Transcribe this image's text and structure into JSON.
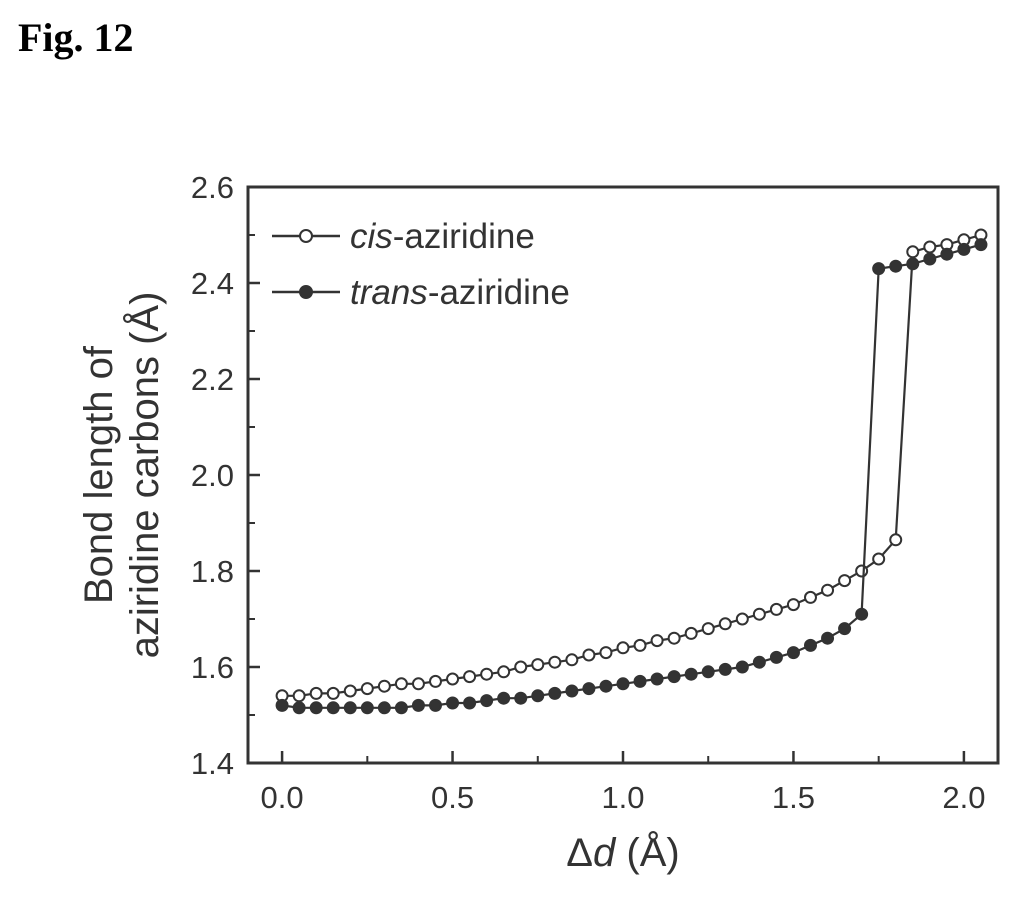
{
  "figure": {
    "label": "Fig. 12"
  },
  "chart_data": {
    "type": "line",
    "title": "",
    "xlabel": {
      "symbol": "Δ",
      "var": "d",
      "unit": " (Å)"
    },
    "ylabel": {
      "line1": "Bond length of",
      "line2": "aziridine carbons (Å)"
    },
    "xlim": [
      -0.1,
      2.1
    ],
    "ylim": [
      1.4,
      2.6
    ],
    "xticks": [
      0.0,
      0.5,
      1.0,
      1.5,
      2.0
    ],
    "xtick_labels": [
      "0.0",
      "0.5",
      "1.0",
      "1.5",
      "2.0"
    ],
    "yticks": [
      1.4,
      1.6,
      1.8,
      2.0,
      2.2,
      2.4,
      2.6
    ],
    "ytick_labels": [
      "1.4",
      "1.6",
      "1.8",
      "2.0",
      "2.2",
      "2.4",
      "2.6"
    ],
    "grid": false,
    "legend_position": "top-left",
    "series": [
      {
        "name_italic": "cis",
        "name_rest": "-aziridine",
        "marker": "open-circle",
        "color": "#333333",
        "x": [
          0.0,
          0.05,
          0.1,
          0.15,
          0.2,
          0.25,
          0.3,
          0.35,
          0.4,
          0.45,
          0.5,
          0.55,
          0.6,
          0.65,
          0.7,
          0.75,
          0.8,
          0.85,
          0.9,
          0.95,
          1.0,
          1.05,
          1.1,
          1.15,
          1.2,
          1.25,
          1.3,
          1.35,
          1.4,
          1.45,
          1.5,
          1.55,
          1.6,
          1.65,
          1.7,
          1.75,
          1.8,
          1.85,
          1.9,
          1.95,
          2.0,
          2.05
        ],
        "y": [
          1.54,
          1.54,
          1.545,
          1.545,
          1.55,
          1.555,
          1.56,
          1.565,
          1.565,
          1.57,
          1.575,
          1.58,
          1.585,
          1.59,
          1.6,
          1.605,
          1.61,
          1.615,
          1.625,
          1.63,
          1.64,
          1.645,
          1.655,
          1.66,
          1.67,
          1.68,
          1.69,
          1.7,
          1.71,
          1.72,
          1.73,
          1.745,
          1.76,
          1.78,
          1.8,
          1.825,
          1.865,
          2.465,
          2.475,
          2.48,
          2.49,
          2.5
        ]
      },
      {
        "name_italic": "trans",
        "name_rest": "-aziridine",
        "marker": "filled-circle",
        "color": "#333333",
        "x": [
          0.0,
          0.05,
          0.1,
          0.15,
          0.2,
          0.25,
          0.3,
          0.35,
          0.4,
          0.45,
          0.5,
          0.55,
          0.6,
          0.65,
          0.7,
          0.75,
          0.8,
          0.85,
          0.9,
          0.95,
          1.0,
          1.05,
          1.1,
          1.15,
          1.2,
          1.25,
          1.3,
          1.35,
          1.4,
          1.45,
          1.5,
          1.55,
          1.6,
          1.65,
          1.7,
          1.75,
          1.8,
          1.85,
          1.9,
          1.95,
          2.0,
          2.05
        ],
        "y": [
          1.52,
          1.515,
          1.515,
          1.515,
          1.515,
          1.515,
          1.515,
          1.515,
          1.52,
          1.52,
          1.525,
          1.525,
          1.53,
          1.535,
          1.535,
          1.54,
          1.545,
          1.55,
          1.555,
          1.56,
          1.565,
          1.57,
          1.575,
          1.58,
          1.585,
          1.59,
          1.595,
          1.6,
          1.61,
          1.62,
          1.63,
          1.645,
          1.66,
          1.68,
          1.71,
          2.43,
          2.435,
          2.44,
          2.45,
          2.46,
          2.47,
          2.48
        ]
      }
    ]
  }
}
